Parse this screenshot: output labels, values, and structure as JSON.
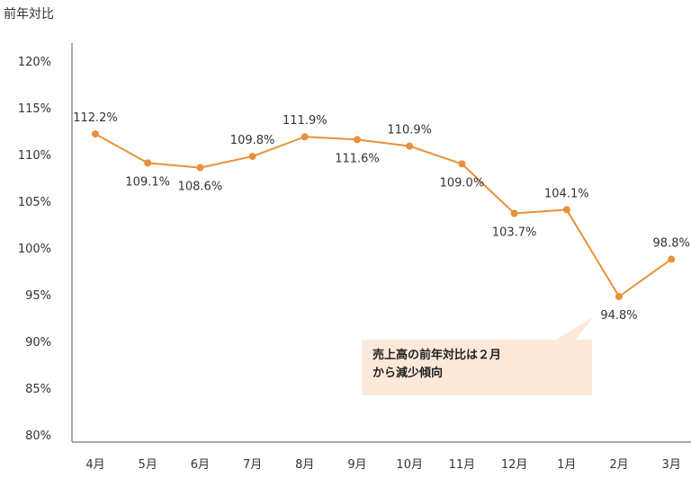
{
  "chart_data": {
    "type": "line",
    "ylabel": "前年対比",
    "categories": [
      "4月",
      "5月",
      "6月",
      "7月",
      "8月",
      "9月",
      "10月",
      "11月",
      "12月",
      "1月",
      "2月",
      "3月"
    ],
    "values": [
      112.2,
      109.1,
      108.6,
      109.8,
      111.9,
      111.6,
      110.9,
      109.0,
      103.7,
      104.1,
      94.8,
      98.8
    ],
    "data_labels": [
      "112.2%",
      "109.1%",
      "108.6%",
      "109.8%",
      "111.9%",
      "111.6%",
      "110.9%",
      "109.0%",
      "103.7%",
      "104.1%",
      "94.8%",
      "98.8%"
    ],
    "y_ticks": [
      80,
      85,
      90,
      95,
      100,
      105,
      110,
      115,
      120
    ],
    "y_tick_labels": [
      "80%",
      "85%",
      "90%",
      "95%",
      "100%",
      "105%",
      "110%",
      "115%",
      "120%"
    ],
    "ylim": [
      80,
      120
    ],
    "grid": false,
    "line_color": "#e8913a",
    "annotation": {
      "line1": "売上高の前年対比は２月",
      "line2": "から減少傾向",
      "background": "#fde9d9"
    }
  }
}
